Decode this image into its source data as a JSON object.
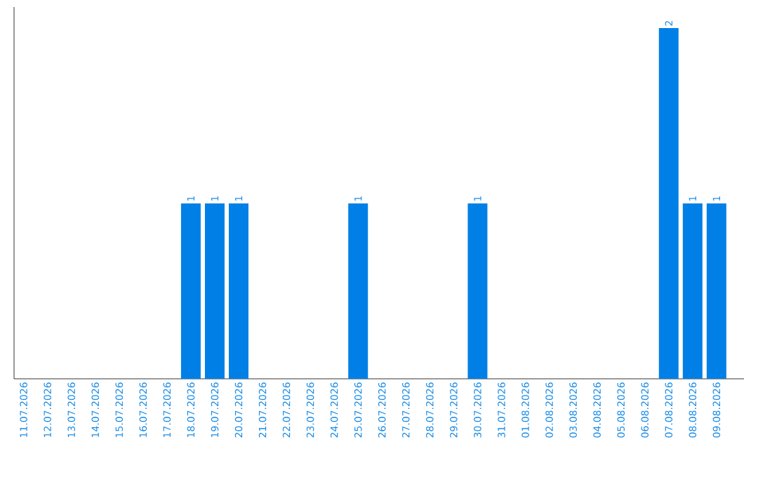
{
  "chart_data": {
    "type": "bar",
    "categories": [
      "11.07.2026",
      "12.07.2026",
      "13.07.2026",
      "14.07.2026",
      "15.07.2026",
      "16.07.2026",
      "17.07.2026",
      "18.07.2026",
      "19.07.2026",
      "20.07.2026",
      "21.07.2026",
      "22.07.2026",
      "23.07.2026",
      "24.07.2026",
      "25.07.2026",
      "26.07.2026",
      "27.07.2026",
      "28.07.2026",
      "29.07.2026",
      "30.07.2026",
      "31.07.2026",
      "01.08.2026",
      "02.08.2026",
      "03.08.2026",
      "04.08.2026",
      "05.08.2026",
      "06.08.2026",
      "07.08.2026",
      "08.08.2026",
      "09.08.2026"
    ],
    "values": [
      0,
      0,
      0,
      0,
      0,
      0,
      0,
      1,
      1,
      1,
      0,
      0,
      0,
      0,
      1,
      0,
      0,
      0,
      0,
      1,
      0,
      0,
      0,
      0,
      0,
      0,
      0,
      2,
      1,
      1
    ],
    "value_labels": [
      null,
      null,
      null,
      null,
      null,
      null,
      null,
      "1",
      "1",
      "1",
      null,
      null,
      null,
      null,
      "1",
      null,
      null,
      null,
      null,
      "1",
      null,
      null,
      null,
      null,
      null,
      null,
      null,
      "2",
      "1",
      "1"
    ],
    "color": "#0080e6"
  }
}
